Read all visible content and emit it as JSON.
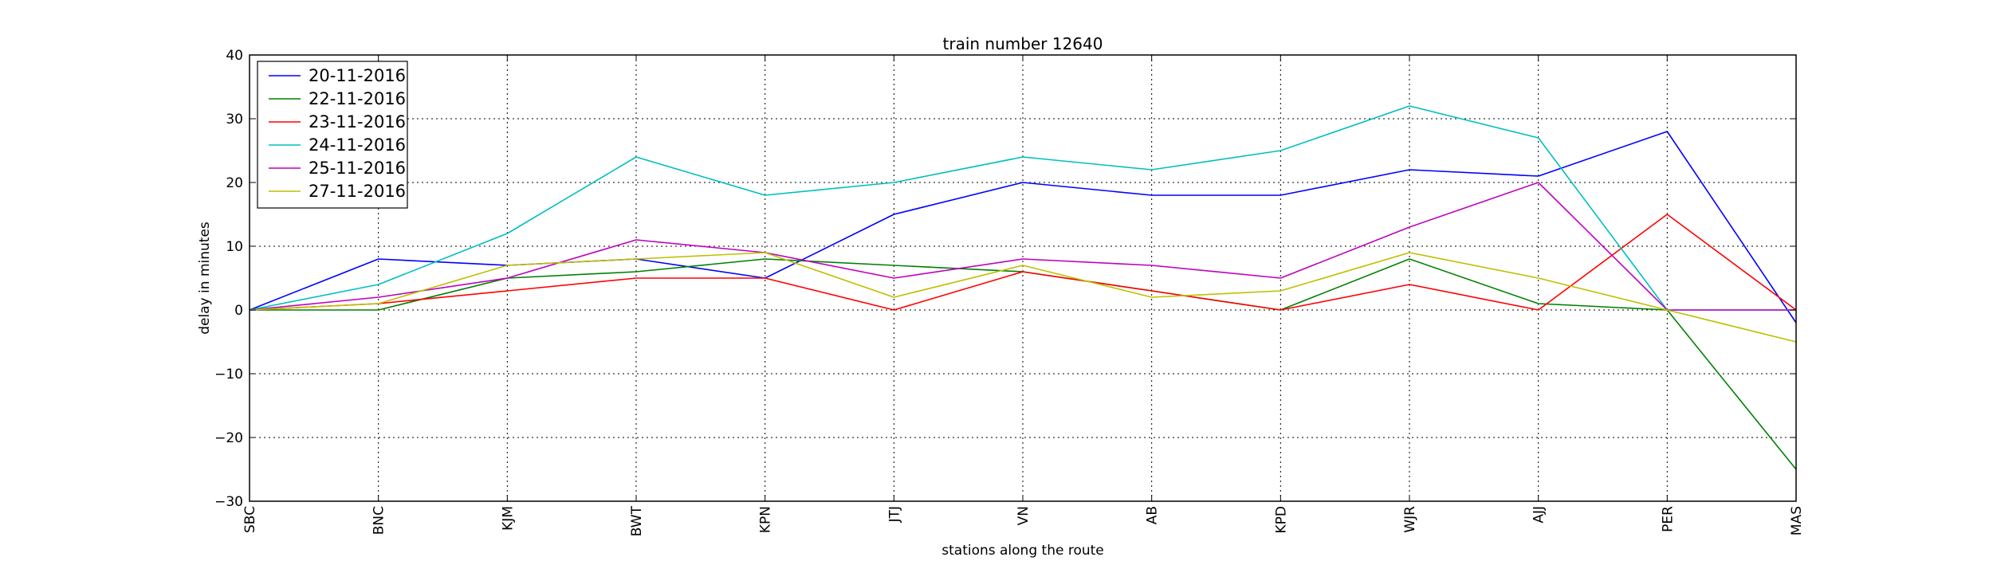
{
  "chart_data": {
    "type": "line",
    "title": "train number 12640",
    "xlabel": "stations along the route",
    "ylabel": "delay in minutes",
    "categories": [
      "SBC",
      "BNC",
      "KJM",
      "BWT",
      "KPN",
      "JTJ",
      "VN",
      "AB",
      "KPD",
      "WJR",
      "AJJ",
      "PER",
      "MAS"
    ],
    "ylim": [
      -30,
      40
    ],
    "yticks": [
      "40",
      "30",
      "20",
      "10",
      "0",
      "−10",
      "−20",
      "−30"
    ],
    "grid": true,
    "legend_position": "top-left",
    "series": [
      {
        "name": "20-11-2016",
        "color": "#0000ff",
        "values": [
          0,
          8,
          7,
          8,
          5,
          15,
          20,
          18,
          18,
          22,
          21,
          28,
          -2
        ]
      },
      {
        "name": "22-11-2016",
        "color": "#008000",
        "values": [
          0,
          0,
          5,
          6,
          8,
          7,
          6,
          3,
          0,
          8,
          1,
          0,
          -25
        ]
      },
      {
        "name": "23-11-2016",
        "color": "#ff0000",
        "values": [
          0,
          1,
          3,
          5,
          5,
          0,
          6,
          3,
          0,
          4,
          0,
          15,
          0
        ]
      },
      {
        "name": "24-11-2016",
        "color": "#00bfbf",
        "values": [
          0,
          4,
          12,
          24,
          18,
          20,
          24,
          22,
          25,
          32,
          27,
          0,
          0
        ]
      },
      {
        "name": "25-11-2016",
        "color": "#bf00bf",
        "values": [
          0,
          2,
          5,
          11,
          9,
          5,
          8,
          7,
          5,
          13,
          20,
          0,
          0
        ]
      },
      {
        "name": "27-11-2016",
        "color": "#bfbf00",
        "values": [
          0,
          1,
          7,
          8,
          9,
          2,
          7,
          2,
          3,
          9,
          5,
          0,
          -5
        ]
      }
    ]
  }
}
